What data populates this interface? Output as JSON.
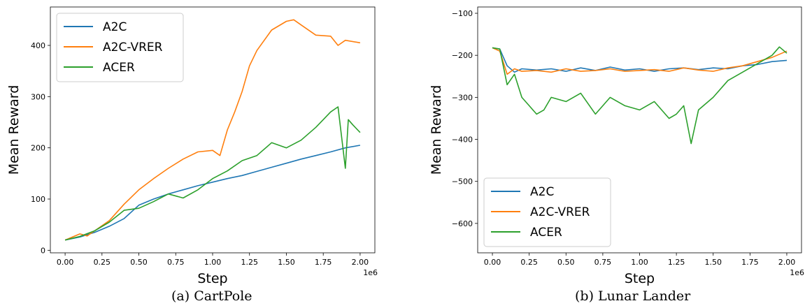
{
  "colors": {
    "A2C": "#1f77b4",
    "A2C-VRER": "#ff7f0e",
    "ACER": "#2ca02c"
  },
  "chart_data": [
    {
      "type": "line",
      "caption": "(a) CartPole",
      "xlabel": "Step",
      "ylabel": "Mean Reward",
      "x_offset_text": "1e6",
      "xlim": [
        -0.1,
        2.1
      ],
      "ylim": [
        -5,
        475
      ],
      "xticks": [
        "0.00",
        "0.25",
        "0.50",
        "0.75",
        "1.00",
        "1.25",
        "1.50",
        "1.75",
        "2.00"
      ],
      "yticks": [
        "0",
        "100",
        "200",
        "300",
        "400"
      ],
      "legend_position": "top-left",
      "grid": false,
      "series": [
        {
          "name": "A2C",
          "color": "#1f77b4",
          "x": [
            0.0,
            0.1,
            0.2,
            0.3,
            0.4,
            0.5,
            0.6,
            0.7,
            0.8,
            0.9,
            1.0,
            1.1,
            1.2,
            1.3,
            1.4,
            1.5,
            1.6,
            1.7,
            1.8,
            1.9,
            2.0
          ],
          "y": [
            20,
            26,
            35,
            47,
            62,
            88,
            100,
            110,
            118,
            126,
            133,
            140,
            146,
            154,
            162,
            170,
            178,
            185,
            192,
            200,
            205
          ]
        },
        {
          "name": "A2C-VRER",
          "color": "#ff7f0e",
          "x": [
            0.0,
            0.1,
            0.15,
            0.2,
            0.3,
            0.4,
            0.5,
            0.6,
            0.7,
            0.8,
            0.9,
            1.0,
            1.05,
            1.1,
            1.15,
            1.2,
            1.25,
            1.3,
            1.4,
            1.5,
            1.55,
            1.6,
            1.7,
            1.8,
            1.85,
            1.9,
            2.0
          ],
          "y": [
            20,
            32,
            28,
            38,
            58,
            90,
            118,
            140,
            160,
            178,
            192,
            195,
            185,
            235,
            270,
            310,
            360,
            390,
            430,
            447,
            450,
            440,
            420,
            418,
            400,
            410,
            405
          ]
        },
        {
          "name": "ACER",
          "color": "#2ca02c",
          "x": [
            0.0,
            0.1,
            0.2,
            0.3,
            0.4,
            0.5,
            0.6,
            0.7,
            0.8,
            0.9,
            1.0,
            1.1,
            1.2,
            1.3,
            1.4,
            1.5,
            1.6,
            1.7,
            1.75,
            1.8,
            1.85,
            1.9,
            1.92,
            1.95,
            2.0
          ],
          "y": [
            20,
            27,
            38,
            55,
            78,
            82,
            95,
            110,
            102,
            118,
            140,
            155,
            175,
            185,
            210,
            200,
            215,
            240,
            255,
            270,
            280,
            160,
            255,
            245,
            230
          ]
        }
      ]
    },
    {
      "type": "line",
      "caption": "(b) Lunar Lander",
      "xlabel": "Step",
      "ylabel": "Mean Reward",
      "x_offset_text": "1e6",
      "xlim": [
        -0.1,
        2.1
      ],
      "ylim": [
        -670,
        -85
      ],
      "xticks": [
        "0.00",
        "0.25",
        "0.50",
        "0.75",
        "1.00",
        "1.25",
        "1.50",
        "1.75",
        "2.00"
      ],
      "yticks": [
        "−600",
        "−500",
        "−400",
        "−300",
        "−200",
        "−100"
      ],
      "legend_position": "bottom-left",
      "grid": false,
      "series": [
        {
          "name": "A2C",
          "color": "#1f77b4",
          "x": [
            0.0,
            0.05,
            0.1,
            0.15,
            0.2,
            0.3,
            0.4,
            0.5,
            0.6,
            0.7,
            0.8,
            0.9,
            1.0,
            1.1,
            1.2,
            1.3,
            1.4,
            1.5,
            1.6,
            1.7,
            1.8,
            1.9,
            2.0
          ],
          "y": [
            -182,
            -185,
            -225,
            -240,
            -232,
            -235,
            -232,
            -238,
            -230,
            -236,
            -228,
            -235,
            -232,
            -238,
            -232,
            -230,
            -234,
            -230,
            -232,
            -225,
            -222,
            -215,
            -212
          ]
        },
        {
          "name": "A2C-VRER",
          "color": "#ff7f0e",
          "x": [
            0.0,
            0.05,
            0.1,
            0.15,
            0.2,
            0.3,
            0.4,
            0.5,
            0.6,
            0.7,
            0.8,
            0.9,
            1.0,
            1.1,
            1.2,
            1.3,
            1.4,
            1.5,
            1.6,
            1.7,
            1.8,
            1.9,
            2.0
          ],
          "y": [
            -182,
            -190,
            -245,
            -232,
            -238,
            -236,
            -240,
            -232,
            -238,
            -236,
            -232,
            -238,
            -236,
            -234,
            -238,
            -230,
            -235,
            -238,
            -230,
            -225,
            -215,
            -205,
            -190
          ]
        },
        {
          "name": "ACER",
          "color": "#2ca02c",
          "x": [
            0.0,
            0.05,
            0.1,
            0.15,
            0.2,
            0.25,
            0.3,
            0.35,
            0.4,
            0.5,
            0.6,
            0.7,
            0.8,
            0.9,
            1.0,
            1.1,
            1.2,
            1.25,
            1.3,
            1.35,
            1.4,
            1.5,
            1.6,
            1.7,
            1.8,
            1.9,
            1.95,
            2.0
          ],
          "y": [
            -182,
            -185,
            -270,
            -245,
            -300,
            -320,
            -340,
            -330,
            -300,
            -310,
            -290,
            -340,
            -300,
            -320,
            -330,
            -310,
            -350,
            -340,
            -320,
            -410,
            -330,
            -300,
            -260,
            -240,
            -220,
            -200,
            -180,
            -195
          ]
        }
      ]
    }
  ]
}
